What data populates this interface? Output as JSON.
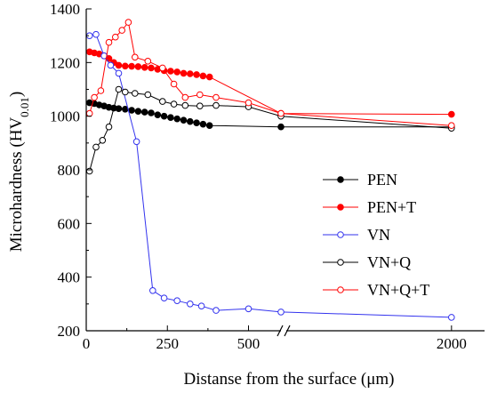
{
  "chart_data": {
    "type": "line",
    "xlabel": "Distanse from the surface (μm)",
    "ylabel": "Microhardness (HV",
    "ylabel_sub": "0.01",
    "ylabel_close": ")",
    "ylim": [
      200,
      1400
    ],
    "y_ticks": [
      200,
      400,
      600,
      800,
      1000,
      1200,
      1400
    ],
    "x_ticks_left": [
      0,
      250,
      500
    ],
    "x_ticks_right": [
      2000
    ],
    "x_break_between": [
      600,
      1900
    ],
    "grid": false,
    "legend_position": "right",
    "series": [
      {
        "name": "PEN",
        "color": "#000000",
        "filled": true,
        "x": [
          10,
          25,
          40,
          55,
          70,
          85,
          100,
          120,
          140,
          160,
          180,
          200,
          220,
          240,
          260,
          280,
          300,
          320,
          340,
          360,
          380,
          600,
          2000
        ],
        "y": [
          1050,
          1047,
          1042,
          1038,
          1033,
          1030,
          1028,
          1026,
          1022,
          1018,
          1015,
          1012,
          1005,
          1000,
          995,
          990,
          985,
          980,
          975,
          970,
          965,
          960,
          960
        ]
      },
      {
        "name": "PEN+T",
        "color": "#ff0000",
        "filled": true,
        "x": [
          10,
          25,
          40,
          55,
          70,
          85,
          100,
          120,
          140,
          160,
          180,
          200,
          220,
          240,
          260,
          280,
          300,
          320,
          340,
          360,
          380,
          600,
          2000
        ],
        "y": [
          1240,
          1236,
          1232,
          1225,
          1215,
          1200,
          1190,
          1187,
          1186,
          1185,
          1182,
          1180,
          1175,
          1170,
          1168,
          1165,
          1160,
          1158,
          1155,
          1150,
          1146,
          1010,
          1007
        ]
      },
      {
        "name": "VN",
        "color": "#3333ee",
        "filled": false,
        "x": [
          10,
          30,
          55,
          75,
          100,
          155,
          205,
          240,
          280,
          320,
          355,
          400,
          500,
          600,
          2000
        ],
        "y": [
          1300,
          1305,
          1225,
          1190,
          1160,
          905,
          350,
          322,
          312,
          300,
          292,
          276,
          282,
          270,
          250
        ]
      },
      {
        "name": "VN+Q",
        "color": "#000000",
        "filled": false,
        "x": [
          10,
          30,
          50,
          70,
          100,
          120,
          150,
          190,
          235,
          270,
          305,
          350,
          400,
          500,
          600,
          2000
        ],
        "y": [
          795,
          885,
          910,
          960,
          1100,
          1090,
          1085,
          1080,
          1055,
          1045,
          1040,
          1038,
          1040,
          1035,
          1000,
          955
        ]
      },
      {
        "name": "VN+Q+T",
        "color": "#ff0000",
        "filled": false,
        "x": [
          10,
          25,
          45,
          70,
          90,
          110,
          130,
          150,
          190,
          235,
          270,
          305,
          350,
          400,
          500,
          600,
          2000
        ],
        "y": [
          1010,
          1070,
          1095,
          1275,
          1295,
          1320,
          1350,
          1220,
          1205,
          1180,
          1120,
          1070,
          1080,
          1070,
          1050,
          1010,
          965
        ]
      }
    ]
  }
}
